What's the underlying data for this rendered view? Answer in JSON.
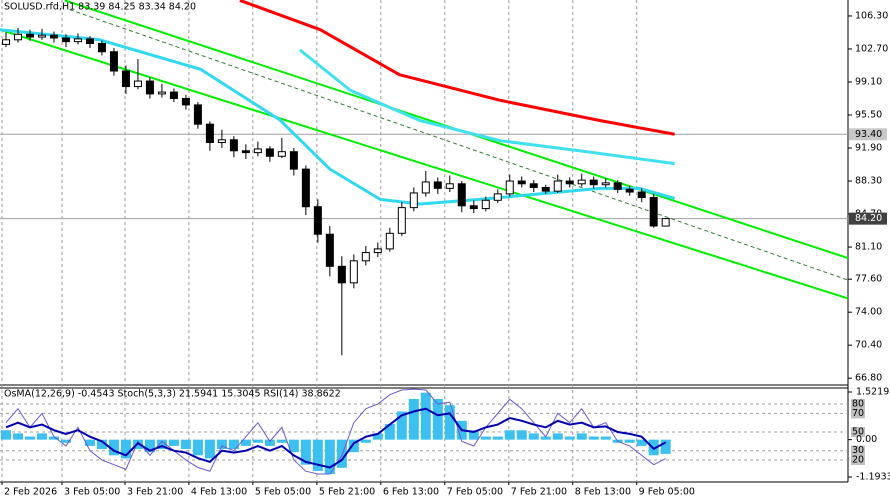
{
  "chart_data": [
    {
      "type": "candlestick",
      "title": "SOLUSD.rfd,H1  83.39 84.25 83.34 84.20",
      "xlim": [
        -0.5,
        70.2
      ],
      "xticks": [
        {
          "value": -0.33,
          "label": "2 Feb 2026"
        },
        {
          "value": 4.67,
          "label": "3 Feb 05:00"
        },
        {
          "value": 9.92,
          "label": "3 Feb 21:00"
        },
        {
          "value": 15.25,
          "label": "4 Feb 13:00"
        },
        {
          "value": 20.58,
          "label": "5 Feb 05:00"
        },
        {
          "value": 25.92,
          "label": "5 Feb 21:00"
        },
        {
          "value": 31.25,
          "label": "6 Feb 13:00"
        },
        {
          "value": 36.58,
          "label": "7 Feb 05:00"
        },
        {
          "value": 41.92,
          "label": "7 Feb 21:00"
        },
        {
          "value": 47.25,
          "label": "8 Feb 13:00"
        },
        {
          "value": 52.58,
          "label": "9 Feb 05:00"
        }
      ],
      "ylim": [
        66.06,
        108.04
      ],
      "yticks": [
        {
          "value": 106.3,
          "label": "106.30"
        },
        {
          "value": 102.7,
          "label": "102.70"
        },
        {
          "value": 99.1,
          "label": "99.10"
        },
        {
          "value": 95.5,
          "label": "95.50"
        },
        {
          "value": 91.9,
          "label": "91.90"
        },
        {
          "value": 88.3,
          "label": "88.30"
        },
        {
          "value": 84.7,
          "label": "84.70"
        },
        {
          "value": 81.1,
          "label": "81.10"
        },
        {
          "value": 77.6,
          "label": "77.60"
        },
        {
          "value": 74,
          "label": "74.00"
        },
        {
          "value": 70.4,
          "label": "70.40"
        },
        {
          "value": 66.8,
          "label": "66.80"
        }
      ],
      "grid": true,
      "up_color": "#ffffff",
      "down_color": "#000000",
      "x": [
        0,
        1,
        2,
        3,
        4,
        5,
        6,
        7,
        8,
        9,
        10,
        11,
        12,
        13,
        14,
        15,
        16,
        17,
        18,
        19,
        20,
        21,
        22,
        23,
        24,
        25,
        26,
        27,
        28,
        29,
        30,
        31,
        32,
        33,
        34,
        35,
        36,
        37,
        38,
        39,
        40,
        41,
        42,
        43,
        44,
        45,
        46,
        47,
        48,
        49,
        50,
        51,
        52,
        53,
        54,
        55
      ],
      "ohlc": [
        [
          103.2,
          104.5,
          102.9,
          103.7
        ],
        [
          103.7,
          105.0,
          103.4,
          104.3
        ],
        [
          104.3,
          104.8,
          103.6,
          104.0
        ],
        [
          104.0,
          104.9,
          103.7,
          104.2
        ],
        [
          104.2,
          104.6,
          103.4,
          103.9
        ],
        [
          103.9,
          104.3,
          102.9,
          103.5
        ],
        [
          103.5,
          104.4,
          103.2,
          103.8
        ],
        [
          103.8,
          104.1,
          102.8,
          103.3
        ],
        [
          103.3,
          103.6,
          102.0,
          102.4
        ],
        [
          102.4,
          102.8,
          99.8,
          100.3
        ],
        [
          100.3,
          100.9,
          97.8,
          98.6
        ],
        [
          98.6,
          101.6,
          98.3,
          99.2
        ],
        [
          99.2,
          99.6,
          97.3,
          97.8
        ],
        [
          97.8,
          98.9,
          97.4,
          98.0
        ],
        [
          98.0,
          98.4,
          96.9,
          97.3
        ],
        [
          97.3,
          97.7,
          96.1,
          96.6
        ],
        [
          96.6,
          96.9,
          94.0,
          94.5
        ],
        [
          94.5,
          94.8,
          91.6,
          92.5
        ],
        [
          92.5,
          93.9,
          91.9,
          92.8
        ],
        [
          92.8,
          93.2,
          90.9,
          91.6
        ],
        [
          91.6,
          92.3,
          90.7,
          91.4
        ],
        [
          91.4,
          92.6,
          91.0,
          91.8
        ],
        [
          91.8,
          92.1,
          90.4,
          91.0
        ],
        [
          91.0,
          93.0,
          90.8,
          91.5
        ],
        [
          91.5,
          91.9,
          88.9,
          89.6
        ],
        [
          89.6,
          90.0,
          84.6,
          85.5
        ],
        [
          85.5,
          86.3,
          81.6,
          82.5
        ],
        [
          82.5,
          83.4,
          77.9,
          79.0
        ],
        [
          79.0,
          80.1,
          69.3,
          77.2
        ],
        [
          77.2,
          80.3,
          76.6,
          79.6
        ],
        [
          79.6,
          81.2,
          79.1,
          80.5
        ],
        [
          80.5,
          81.6,
          80.0,
          80.9
        ],
        [
          80.9,
          83.2,
          80.6,
          82.6
        ],
        [
          82.6,
          86.0,
          82.3,
          85.4
        ],
        [
          85.4,
          87.6,
          85.0,
          87.0
        ],
        [
          87.0,
          89.4,
          86.6,
          88.2
        ],
        [
          88.2,
          88.7,
          86.9,
          87.5
        ],
        [
          87.5,
          88.9,
          87.1,
          88.0
        ],
        [
          88.0,
          88.3,
          84.9,
          85.6
        ],
        [
          85.6,
          86.2,
          84.8,
          85.3
        ],
        [
          85.3,
          86.6,
          85.0,
          86.2
        ],
        [
          86.2,
          87.4,
          85.9,
          86.9
        ],
        [
          86.9,
          89.0,
          86.6,
          88.3
        ],
        [
          88.3,
          88.8,
          87.6,
          88.0
        ],
        [
          88.0,
          88.4,
          87.1,
          87.6
        ],
        [
          87.6,
          87.9,
          86.9,
          87.2
        ],
        [
          87.2,
          89.0,
          87.0,
          88.3
        ],
        [
          88.3,
          88.7,
          87.6,
          88.0
        ],
        [
          88.0,
          89.1,
          87.7,
          88.4
        ],
        [
          88.4,
          88.8,
          87.5,
          87.9
        ],
        [
          87.9,
          88.6,
          87.6,
          88.1
        ],
        [
          88.1,
          88.4,
          87.0,
          87.4
        ],
        [
          87.4,
          87.8,
          86.7,
          87.1
        ],
        [
          87.1,
          87.5,
          86.0,
          86.5
        ],
        [
          86.5,
          86.9,
          83.2,
          83.4
        ],
        [
          83.39,
          84.25,
          83.34,
          84.2
        ]
      ],
      "moving_averages": [
        {
          "color": "#ff0000",
          "width": 3,
          "x": [
            19.5,
            26.2,
            32.8,
            41.2,
            49.5,
            55.75
          ],
          "values": [
            108.0,
            104.8,
            99.9,
            97.1,
            94.9,
            93.4
          ]
        },
        {
          "color": "#40e0f0",
          "width": 3,
          "x": [
            24.5,
            28.7,
            34.5,
            41.2,
            47.8,
            55.75
          ],
          "values": [
            102.6,
            98.2,
            94.9,
            92.7,
            91.6,
            90.2
          ]
        },
        {
          "color": "#30d8f0",
          "width": 3,
          "x": [
            -0.5,
            7.8,
            16.2,
            22.8,
            27,
            31.2,
            34.5,
            39.5,
            44.5,
            49.5,
            52.8,
            55.75
          ],
          "values": [
            104.8,
            103.7,
            100.5,
            95.0,
            89.6,
            86.3,
            85.8,
            86.3,
            86.9,
            87.5,
            87.5,
            86.4
          ]
        }
      ],
      "trendlines": [
        {
          "color": "#00ee00",
          "dash": false,
          "x": [
            4.9,
            70.2
          ],
          "values": [
            108.0,
            79.9
          ]
        },
        {
          "color": "#00ee00",
          "dash": false,
          "x": [
            -0.5,
            70.2
          ],
          "values": [
            104.8,
            75.5
          ]
        },
        {
          "color": "#2e7d32",
          "dash": true,
          "x": [
            5.3,
            70.2
          ],
          "values": [
            107.0,
            77.5
          ]
        }
      ],
      "price_labels": [
        {
          "value": 93.4,
          "label": "93.40",
          "color": "#c8c8c8"
        },
        {
          "value": 84.2,
          "label": "84.20",
          "color": "#404040"
        }
      ]
    },
    {
      "type": "oscillator",
      "title": "OsMA(12,26,9) -0.4543  Stoch(5,3,3) 21.5941 15.3045  RSI(14) 38.8622",
      "ylim": [
        -1.1933,
        1.5219
      ],
      "yticks": [
        1.5219,
        {
          "value": 0,
          "label": "0.00"
        },
        -1.1933
      ],
      "y2lim": [
        1.8,
        92.9
      ],
      "y2ticks": [
        80,
        70,
        50,
        30,
        20
      ],
      "series": [
        {
          "name": "OsMA",
          "color": "#3cc0f0",
          "values": [
            0.3,
            0.2,
            0.1,
            0.2,
            0.1,
            -0.1,
            0,
            -0.2,
            -0.3,
            -0.5,
            -0.6,
            -0.3,
            -0.4,
            -0.3,
            -0.2,
            -0.3,
            -0.5,
            -0.6,
            -0.3,
            -0.3,
            -0.2,
            -0.1,
            -0.2,
            -0.1,
            -0.4,
            -0.8,
            -1.0,
            -1.1,
            -0.9,
            -0.4,
            -0.1,
            0.2,
            0.5,
            0.9,
            1.3,
            1.5,
            1.3,
            1.1,
            0.6,
            0.3,
            0.1,
            0.1,
            0.3,
            0.3,
            0.2,
            0.1,
            0.2,
            0.1,
            0.2,
            0.1,
            0.1,
            -0.1,
            -0.1,
            -0.2,
            -0.5,
            -0.4543
          ]
        },
        {
          "name": "Stoch",
          "color": "#6a5acd",
          "axis": "y2",
          "values": [
            60,
            75,
            55,
            70,
            45,
            35,
            55,
            30,
            20,
            15,
            10,
            40,
            25,
            40,
            30,
            20,
            12,
            8,
            35,
            30,
            45,
            60,
            40,
            55,
            20,
            8,
            5,
            5,
            25,
            60,
            75,
            80,
            90,
            95,
            96,
            95,
            80,
            82,
            40,
            35,
            55,
            70,
            85,
            75,
            60,
            45,
            70,
            60,
            75,
            55,
            60,
            40,
            35,
            25,
            15,
            21.5941
          ]
        },
        {
          "name": "RSI",
          "color": "#0000b0",
          "axis": "y2",
          "values": [
            55,
            60,
            55,
            58,
            52,
            48,
            52,
            45,
            40,
            30,
            25,
            38,
            30,
            35,
            30,
            28,
            22,
            18,
            30,
            28,
            30,
            35,
            30,
            35,
            25,
            18,
            15,
            12,
            20,
            38,
            45,
            48,
            58,
            68,
            72,
            75,
            68,
            70,
            52,
            50,
            55,
            58,
            65,
            62,
            58,
            55,
            62,
            58,
            60,
            55,
            56,
            50,
            48,
            45,
            32,
            38.8622
          ]
        }
      ]
    }
  ]
}
